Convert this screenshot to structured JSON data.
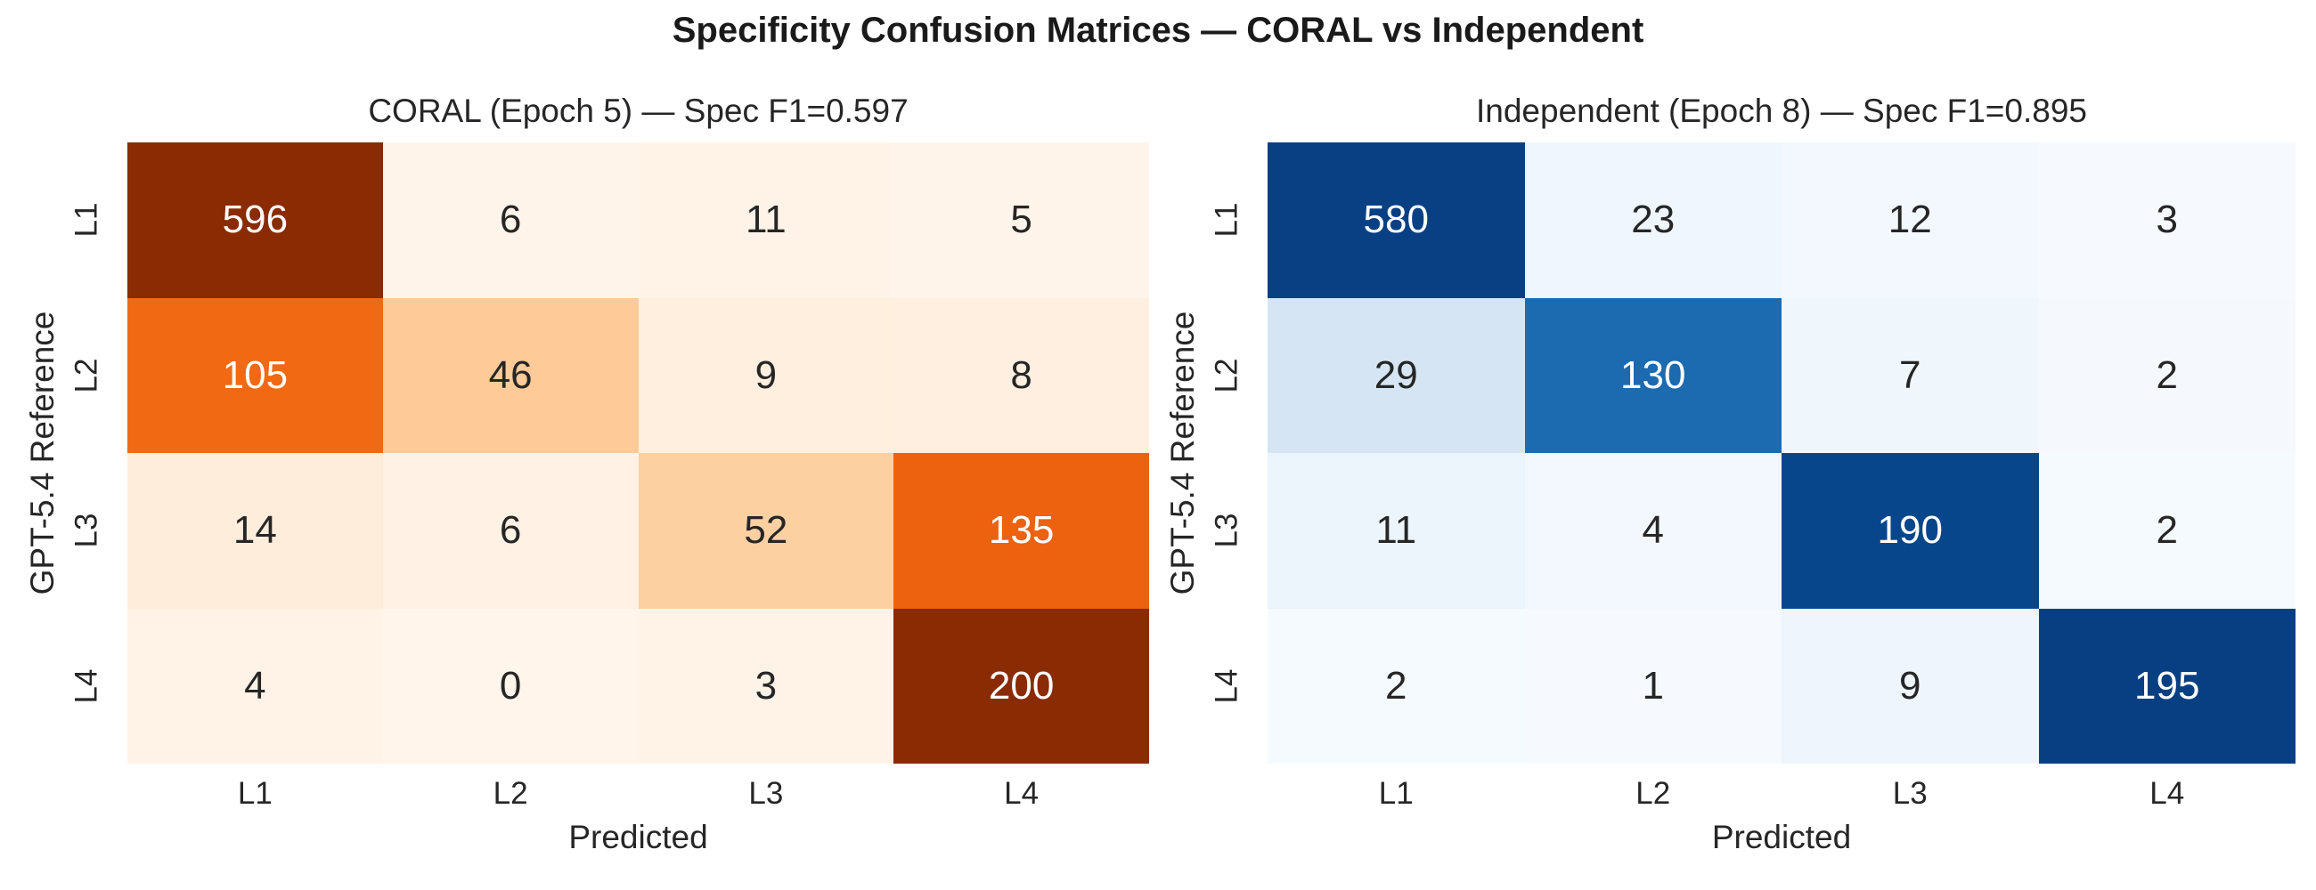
{
  "figure": {
    "title": "Specificity Confusion Matrices — CORAL vs Independent",
    "background": "#ffffff",
    "title_color": "#1a1a1a",
    "text_color": "#262626"
  },
  "chart_data": [
    {
      "type": "heatmap",
      "title": "CORAL (Epoch 5) — Spec F1=0.597",
      "xlabel": "Predicted",
      "ylabel": "GPT-5.4 Reference",
      "x_ticklabels": [
        "L1",
        "L2",
        "L3",
        "L4"
      ],
      "y_ticklabels": [
        "L1",
        "L2",
        "L3",
        "L4"
      ],
      "values": [
        [
          596,
          6,
          11,
          5
        ],
        [
          105,
          46,
          9,
          8
        ],
        [
          14,
          6,
          52,
          135
        ],
        [
          4,
          0,
          3,
          200
        ]
      ],
      "colormap": "Oranges",
      "color_scale": "row-share",
      "cell_colors": [
        [
          "#8a2b04",
          "#fff4e9",
          "#fff3e7",
          "#fff4e9"
        ],
        [
          "#f16913",
          "#fdca98",
          "#ffefdf",
          "#ffefe0"
        ],
        [
          "#feeddb",
          "#fff2e4",
          "#fdd0a2",
          "#ec620f"
        ],
        [
          "#fff3e7",
          "#fff5eb",
          "#fff3e8",
          "#8a2b04"
        ]
      ]
    },
    {
      "type": "heatmap",
      "title": "Independent (Epoch 8) — Spec F1=0.895",
      "xlabel": "Predicted",
      "ylabel": "GPT-5.4 Reference",
      "x_ticklabels": [
        "L1",
        "L2",
        "L3",
        "L4"
      ],
      "y_ticklabels": [
        "L1",
        "L2",
        "L3",
        "L4"
      ],
      "values": [
        [
          580,
          23,
          12,
          3
        ],
        [
          29,
          130,
          7,
          2
        ],
        [
          11,
          4,
          190,
          2
        ],
        [
          2,
          1,
          9,
          195
        ]
      ],
      "colormap": "Blues",
      "color_scale": "row-share",
      "cell_colors": [
        [
          "#084083",
          "#f0f6fd",
          "#f3f8fe",
          "#f6faff"
        ],
        [
          "#d5e5f4",
          "#1c6bb0",
          "#eff6fc",
          "#f5f9fe"
        ],
        [
          "#ecf4fc",
          "#f3f8fe",
          "#08468b",
          "#f5fafe"
        ],
        [
          "#f5fafe",
          "#f6faff",
          "#eef5fc",
          "#083f82"
        ]
      ]
    }
  ]
}
